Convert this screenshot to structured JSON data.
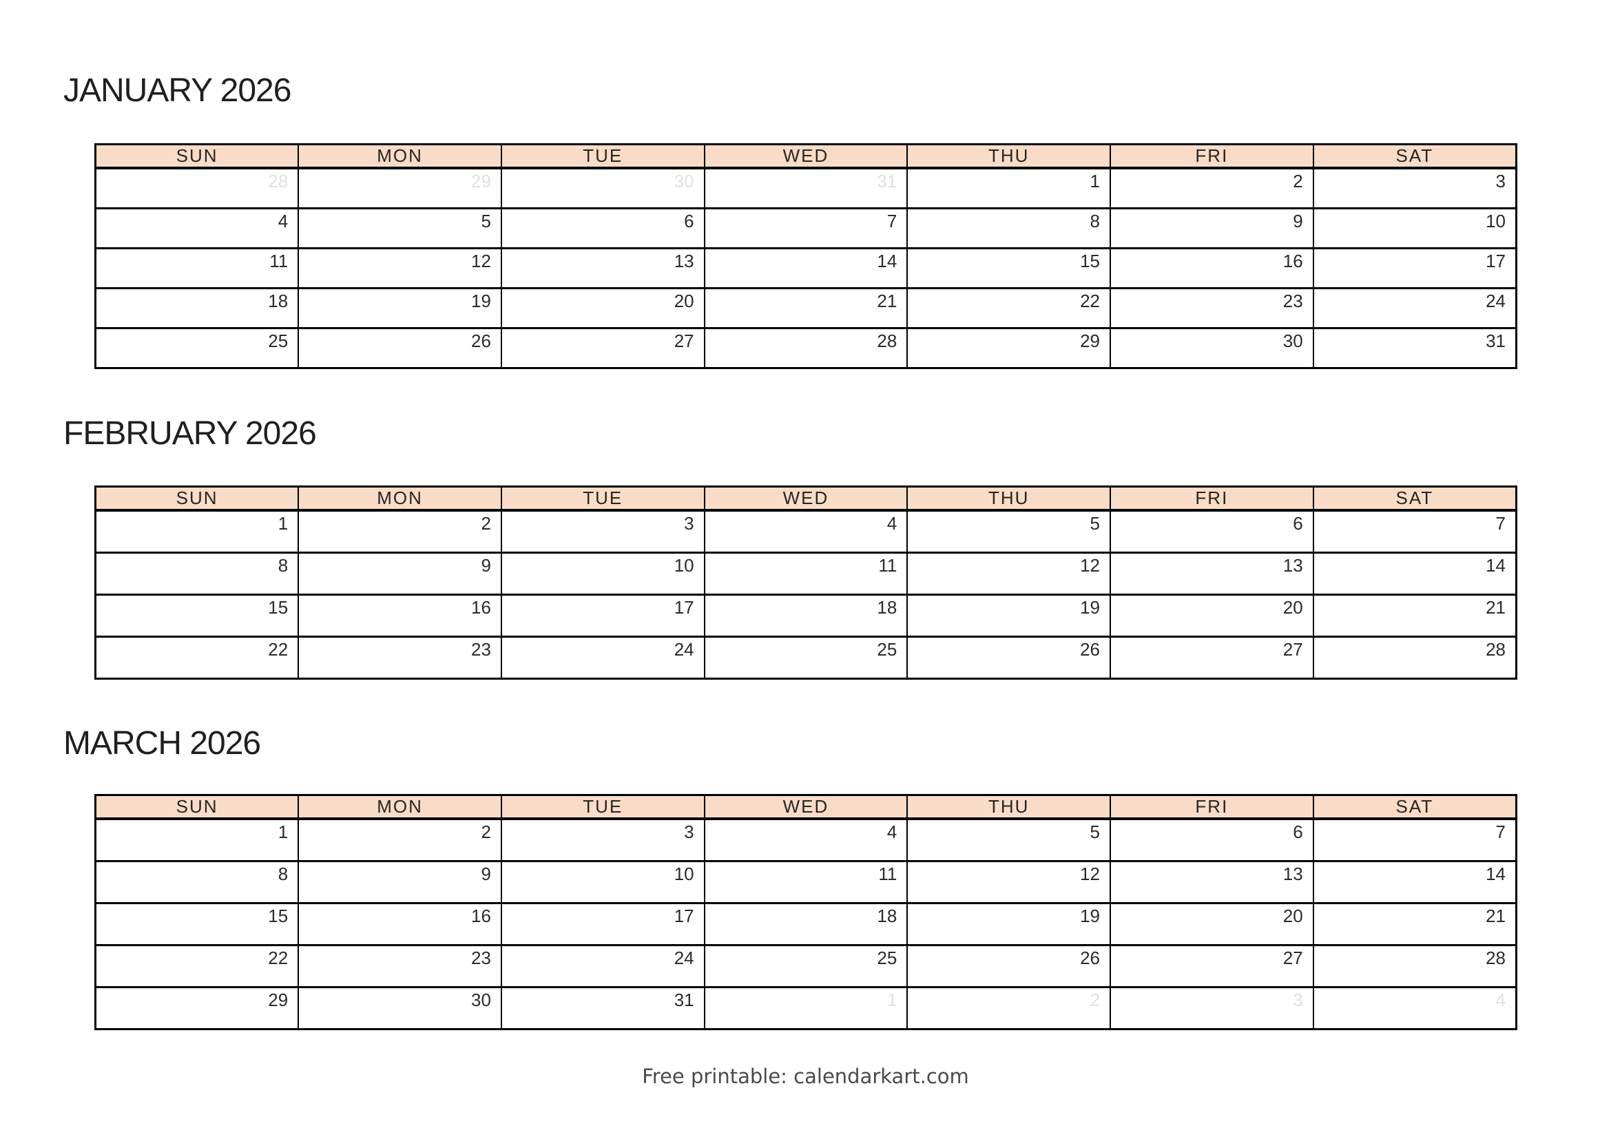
{
  "page": {
    "footer_text": "Free printable: calendarkart.com"
  },
  "colors": {
    "header_bg": "#f8dcc8",
    "border": "#000000",
    "title_text": "#1f1f1f",
    "weekday_text": "#2a2420",
    "day_text": "#2b2b2b",
    "faded_day_text": "#e0e0e0",
    "footer_text": "#4a4a4a",
    "page_bg": "#ffffff"
  },
  "weekdays": [
    "SUN",
    "MON",
    "TUE",
    "WED",
    "THU",
    "FRI",
    "SAT"
  ],
  "months": [
    {
      "title": "JANUARY 2026",
      "weeks": [
        [
          {
            "d": 28,
            "faded": true
          },
          {
            "d": 29,
            "faded": true
          },
          {
            "d": 30,
            "faded": true
          },
          {
            "d": 31,
            "faded": true
          },
          {
            "d": 1,
            "faded": false
          },
          {
            "d": 2,
            "faded": false
          },
          {
            "d": 3,
            "faded": false
          }
        ],
        [
          {
            "d": 4,
            "faded": false
          },
          {
            "d": 5,
            "faded": false
          },
          {
            "d": 6,
            "faded": false
          },
          {
            "d": 7,
            "faded": false
          },
          {
            "d": 8,
            "faded": false
          },
          {
            "d": 9,
            "faded": false
          },
          {
            "d": 10,
            "faded": false
          }
        ],
        [
          {
            "d": 11,
            "faded": false
          },
          {
            "d": 12,
            "faded": false
          },
          {
            "d": 13,
            "faded": false
          },
          {
            "d": 14,
            "faded": false
          },
          {
            "d": 15,
            "faded": false
          },
          {
            "d": 16,
            "faded": false
          },
          {
            "d": 17,
            "faded": false
          }
        ],
        [
          {
            "d": 18,
            "faded": false
          },
          {
            "d": 19,
            "faded": false
          },
          {
            "d": 20,
            "faded": false
          },
          {
            "d": 21,
            "faded": false
          },
          {
            "d": 22,
            "faded": false
          },
          {
            "d": 23,
            "faded": false
          },
          {
            "d": 24,
            "faded": false
          }
        ],
        [
          {
            "d": 25,
            "faded": false
          },
          {
            "d": 26,
            "faded": false
          },
          {
            "d": 27,
            "faded": false
          },
          {
            "d": 28,
            "faded": false
          },
          {
            "d": 29,
            "faded": false
          },
          {
            "d": 30,
            "faded": false
          },
          {
            "d": 31,
            "faded": false
          }
        ]
      ]
    },
    {
      "title": "FEBRUARY 2026",
      "weeks": [
        [
          {
            "d": 1,
            "faded": false
          },
          {
            "d": 2,
            "faded": false
          },
          {
            "d": 3,
            "faded": false
          },
          {
            "d": 4,
            "faded": false
          },
          {
            "d": 5,
            "faded": false
          },
          {
            "d": 6,
            "faded": false
          },
          {
            "d": 7,
            "faded": false
          }
        ],
        [
          {
            "d": 8,
            "faded": false
          },
          {
            "d": 9,
            "faded": false
          },
          {
            "d": 10,
            "faded": false
          },
          {
            "d": 11,
            "faded": false
          },
          {
            "d": 12,
            "faded": false
          },
          {
            "d": 13,
            "faded": false
          },
          {
            "d": 14,
            "faded": false
          }
        ],
        [
          {
            "d": 15,
            "faded": false
          },
          {
            "d": 16,
            "faded": false
          },
          {
            "d": 17,
            "faded": false
          },
          {
            "d": 18,
            "faded": false
          },
          {
            "d": 19,
            "faded": false
          },
          {
            "d": 20,
            "faded": false
          },
          {
            "d": 21,
            "faded": false
          }
        ],
        [
          {
            "d": 22,
            "faded": false
          },
          {
            "d": 23,
            "faded": false
          },
          {
            "d": 24,
            "faded": false
          },
          {
            "d": 25,
            "faded": false
          },
          {
            "d": 26,
            "faded": false
          },
          {
            "d": 27,
            "faded": false
          },
          {
            "d": 28,
            "faded": false
          }
        ]
      ]
    },
    {
      "title": "MARCH 2026",
      "weeks": [
        [
          {
            "d": 1,
            "faded": false
          },
          {
            "d": 2,
            "faded": false
          },
          {
            "d": 3,
            "faded": false
          },
          {
            "d": 4,
            "faded": false
          },
          {
            "d": 5,
            "faded": false
          },
          {
            "d": 6,
            "faded": false
          },
          {
            "d": 7,
            "faded": false
          }
        ],
        [
          {
            "d": 8,
            "faded": false
          },
          {
            "d": 9,
            "faded": false
          },
          {
            "d": 10,
            "faded": false
          },
          {
            "d": 11,
            "faded": false
          },
          {
            "d": 12,
            "faded": false
          },
          {
            "d": 13,
            "faded": false
          },
          {
            "d": 14,
            "faded": false
          }
        ],
        [
          {
            "d": 15,
            "faded": false
          },
          {
            "d": 16,
            "faded": false
          },
          {
            "d": 17,
            "faded": false
          },
          {
            "d": 18,
            "faded": false
          },
          {
            "d": 19,
            "faded": false
          },
          {
            "d": 20,
            "faded": false
          },
          {
            "d": 21,
            "faded": false
          }
        ],
        [
          {
            "d": 22,
            "faded": false
          },
          {
            "d": 23,
            "faded": false
          },
          {
            "d": 24,
            "faded": false
          },
          {
            "d": 25,
            "faded": false
          },
          {
            "d": 26,
            "faded": false
          },
          {
            "d": 27,
            "faded": false
          },
          {
            "d": 28,
            "faded": false
          }
        ],
        [
          {
            "d": 29,
            "faded": false
          },
          {
            "d": 30,
            "faded": false
          },
          {
            "d": 31,
            "faded": false
          },
          {
            "d": 1,
            "faded": true
          },
          {
            "d": 2,
            "faded": true
          },
          {
            "d": 3,
            "faded": true
          },
          {
            "d": 4,
            "faded": true
          }
        ]
      ]
    }
  ]
}
